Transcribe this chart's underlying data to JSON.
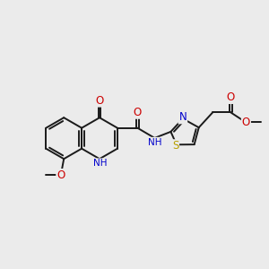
{
  "bg_color": "#ebebeb",
  "bond_color": "#1a1a1a",
  "bond_width": 1.4,
  "atom_colors": {
    "C": "#1a1a1a",
    "N": "#0000cc",
    "O": "#cc0000",
    "S": "#b8a000",
    "H": "#555555"
  },
  "font_size": 7.5,
  "figsize": [
    3.0,
    3.0
  ],
  "dpi": 100,
  "xlim": [
    0.0,
    10.5
  ],
  "ylim": [
    1.5,
    8.5
  ]
}
